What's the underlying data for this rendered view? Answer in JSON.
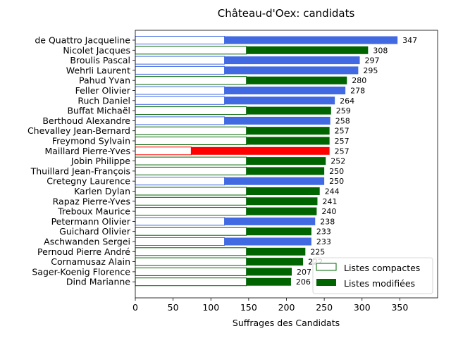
{
  "chart_data": {
    "type": "bar",
    "orientation": "horizontal",
    "stacked": true,
    "title": "Château-d'Oex: candidats",
    "xlabel": "Suffrages des Candidats",
    "ylabel": "",
    "xlim": [
      0,
      400
    ],
    "xticks": [
      0,
      50,
      100,
      150,
      200,
      250,
      300,
      350
    ],
    "grid": false,
    "legend_position": "lower right",
    "legend": [
      {
        "label": "Listes compactes",
        "style": "outline",
        "color": "#006400"
      },
      {
        "label": "Listes modifiées",
        "style": "filled",
        "color": "#006400"
      }
    ],
    "candidates": [
      {
        "name": "de Quattro Jacqueline",
        "compact": 118,
        "total": 347,
        "color": "#4169e1"
      },
      {
        "name": "Nicolet Jacques",
        "compact": 147,
        "total": 308,
        "color": "#006400"
      },
      {
        "name": "Broulis Pascal",
        "compact": 118,
        "total": 297,
        "color": "#4169e1"
      },
      {
        "name": "Wehrli Laurent",
        "compact": 118,
        "total": 295,
        "color": "#4169e1"
      },
      {
        "name": "Pahud Yvan",
        "compact": 147,
        "total": 280,
        "color": "#006400"
      },
      {
        "name": "Feller Olivier",
        "compact": 118,
        "total": 278,
        "color": "#4169e1"
      },
      {
        "name": "Ruch Daniel",
        "compact": 118,
        "total": 264,
        "color": "#4169e1"
      },
      {
        "name": "Buffat Michaël",
        "compact": 147,
        "total": 259,
        "color": "#006400"
      },
      {
        "name": "Berthoud Alexandre",
        "compact": 118,
        "total": 258,
        "color": "#4169e1"
      },
      {
        "name": "Chevalley Jean-Bernard",
        "compact": 147,
        "total": 257,
        "color": "#006400"
      },
      {
        "name": "Freymond Sylvain",
        "compact": 147,
        "total": 257,
        "color": "#006400"
      },
      {
        "name": "Maillard Pierre-Yves",
        "compact": 74,
        "total": 257,
        "color": "#ff0000"
      },
      {
        "name": "Jobin Philippe",
        "compact": 147,
        "total": 252,
        "color": "#006400"
      },
      {
        "name": "Thuillard Jean-François",
        "compact": 147,
        "total": 250,
        "color": "#006400"
      },
      {
        "name": "Cretegny Laurence",
        "compact": 118,
        "total": 250,
        "color": "#4169e1"
      },
      {
        "name": "Karlen Dylan",
        "compact": 147,
        "total": 244,
        "color": "#006400"
      },
      {
        "name": "Rapaz Pierre-Yves",
        "compact": 147,
        "total": 241,
        "color": "#006400"
      },
      {
        "name": "Treboux Maurice",
        "compact": 147,
        "total": 240,
        "color": "#006400"
      },
      {
        "name": "Petermann Olivier",
        "compact": 118,
        "total": 238,
        "color": "#4169e1"
      },
      {
        "name": "Guichard Olivier",
        "compact": 147,
        "total": 233,
        "color": "#006400"
      },
      {
        "name": "Aschwanden Sergei",
        "compact": 118,
        "total": 233,
        "color": "#4169e1"
      },
      {
        "name": "Pernoud Pierre André",
        "compact": 147,
        "total": 225,
        "color": "#006400"
      },
      {
        "name": "Cornamusaz Alain",
        "compact": 147,
        "total": 222,
        "color": "#006400"
      },
      {
        "name": "Sager-Koenig Florence",
        "compact": 147,
        "total": 207,
        "color": "#006400"
      },
      {
        "name": "Dind Marianne",
        "compact": 147,
        "total": 206,
        "color": "#006400"
      }
    ]
  }
}
